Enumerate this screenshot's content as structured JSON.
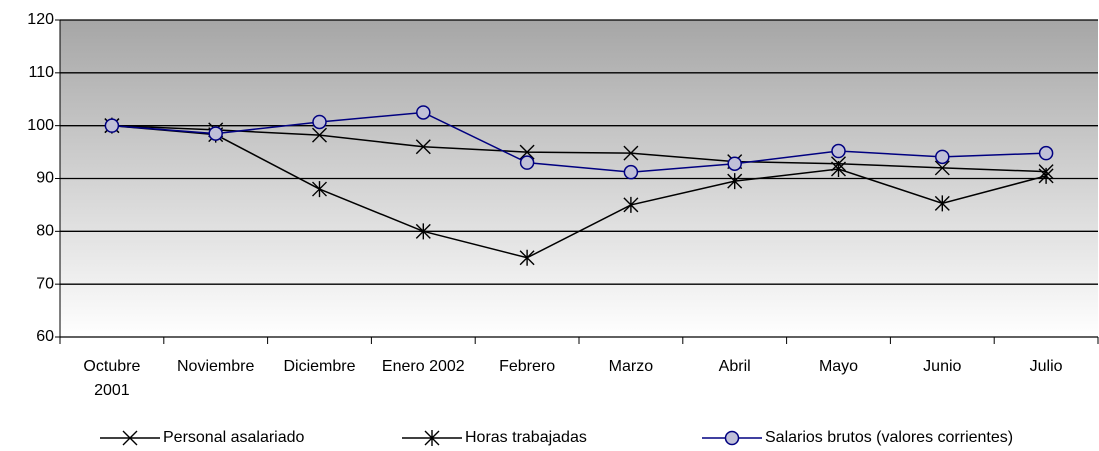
{
  "chart_data": {
    "type": "line",
    "categories": [
      "Octubre 2001",
      "Noviembre",
      "Diciembre",
      "Enero 2002",
      "Febrero",
      "Marzo",
      "Abril",
      "Mayo",
      "Junio",
      "Julio"
    ],
    "series": [
      {
        "name": "Personal asalariado",
        "color": "#000000",
        "marker": "x",
        "values": [
          100,
          99.2,
          98.2,
          96,
          95,
          94.8,
          93.2,
          92.8,
          92,
          91.3
        ]
      },
      {
        "name": "Horas trabajadas",
        "color": "#000000",
        "marker": "asterisk",
        "values": [
          100,
          98.3,
          88,
          80,
          75,
          85,
          89.5,
          91.8,
          85.3,
          90.5
        ]
      },
      {
        "name": "Salarios brutos (valores corrientes)",
        "color": "#000080",
        "marker": "circle",
        "values": [
          100,
          98.5,
          100.7,
          102.5,
          93,
          91.2,
          92.8,
          95.2,
          94.1,
          94.8
        ]
      }
    ],
    "ylim": [
      60,
      120
    ],
    "yticks": [
      60,
      70,
      80,
      90,
      100,
      110,
      120
    ],
    "grid": true,
    "legend": "bottom"
  }
}
